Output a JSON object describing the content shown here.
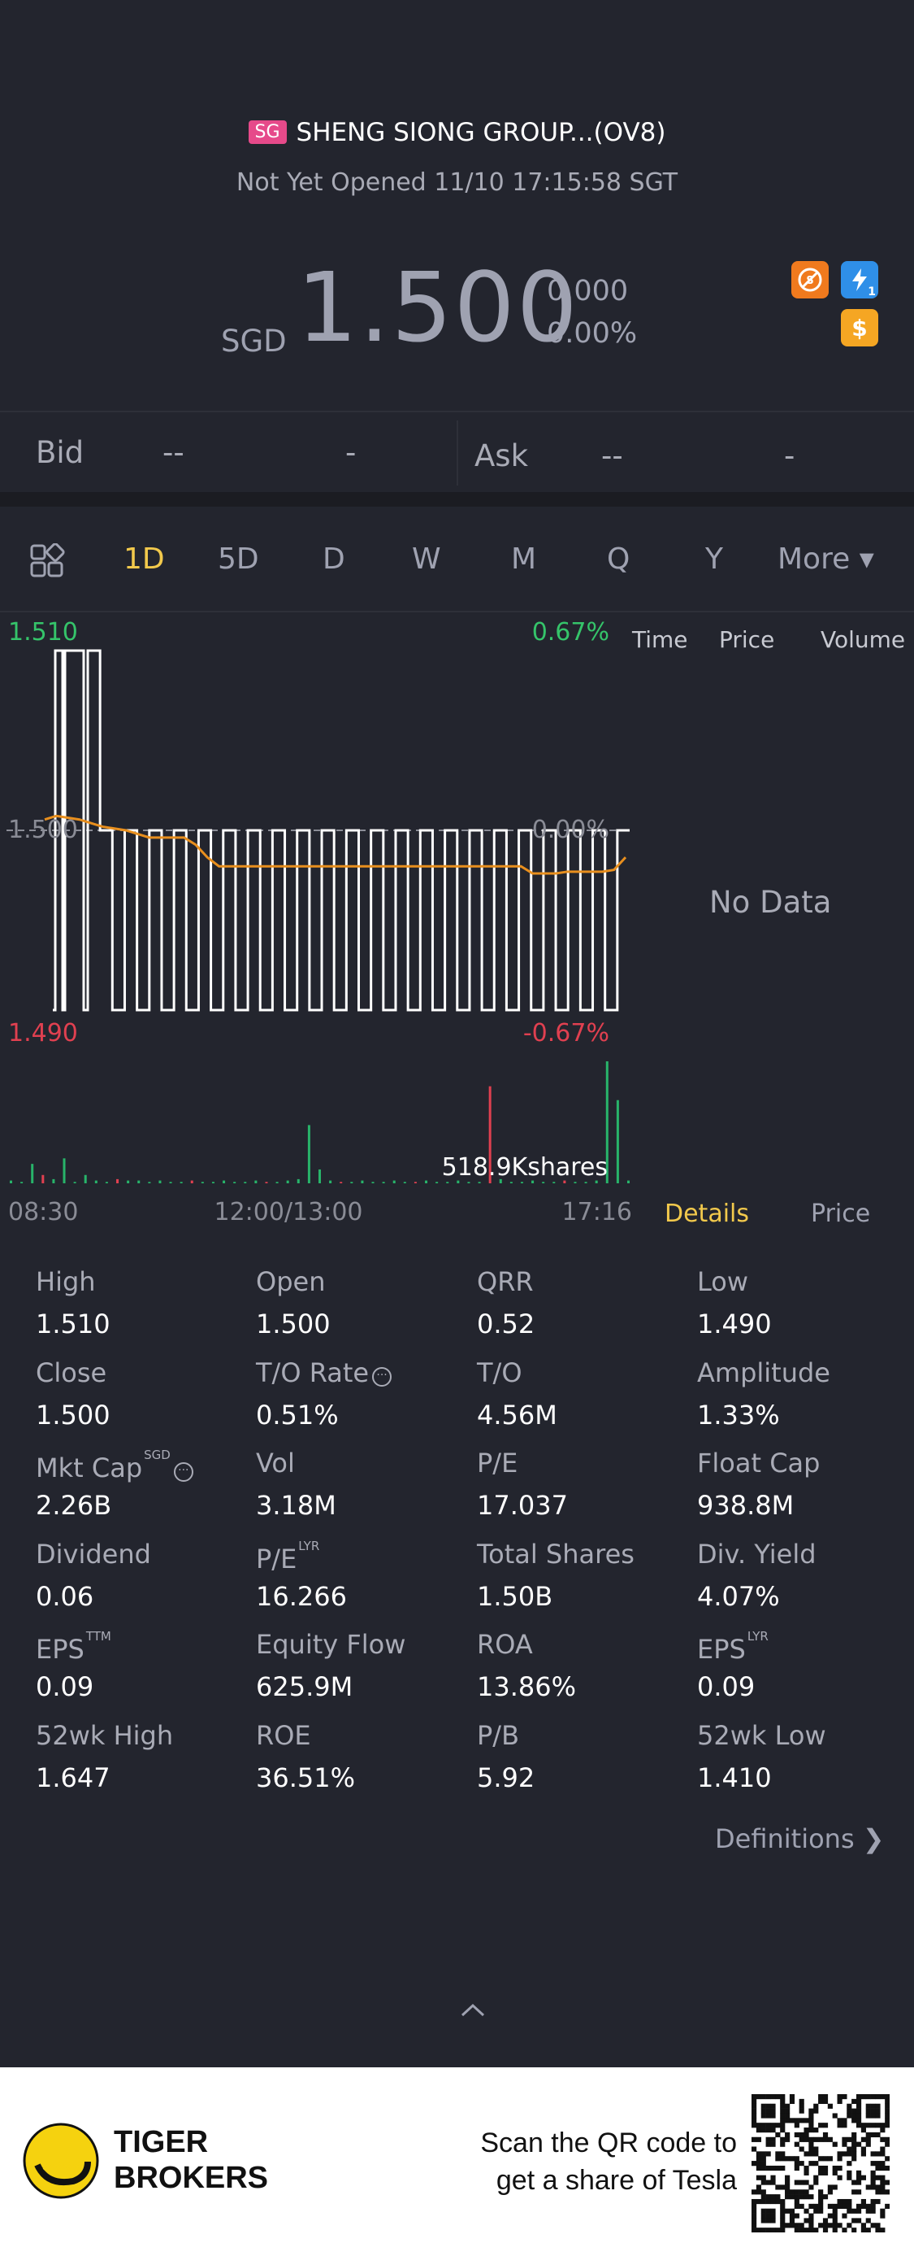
{
  "header": {
    "market_badge": "SG",
    "title": "SHENG SIONG GROUP...(OV8)",
    "status": "Not Yet Opened 11/10 17:15:58 SGT",
    "currency": "SGD",
    "price": "1.500",
    "change": "0.000",
    "change_pct": "0.00%",
    "icons": [
      "no-short-icon",
      "lightning-icon",
      "dollar-icon"
    ],
    "lightning_num": "1"
  },
  "bidask": {
    "bid_label": "Bid",
    "bid_price": "--",
    "bid_size": "-",
    "ask_label": "Ask",
    "ask_price": "--",
    "ask_size": "-"
  },
  "tabs": [
    "1D",
    "5D",
    "D",
    "W",
    "M",
    "Q",
    "Y",
    "More ▾"
  ],
  "active_tab": "1D",
  "chart_labels": {
    "high": "1.510",
    "high_pct": "0.67%",
    "mid": "1.500",
    "mid_pct": "0.00%",
    "low": "1.490",
    "low_pct": "-0.67%",
    "volume_label": "518.9Kshares",
    "t_start": "08:30",
    "t_mid": "12:00/13:00",
    "t_end": "17:16"
  },
  "chart_data": {
    "type": "line",
    "title": "",
    "xlabel": "",
    "ylabel": "",
    "ylim": [
      1.49,
      1.51
    ],
    "x_ticks": [
      "08:30",
      "12:00/13:00",
      "17:16"
    ],
    "series": [
      {
        "values": [
          1.49,
          1.51,
          1.49,
          1.51,
          1.49,
          1.51,
          1.5,
          1.49,
          1.5,
          1.49,
          1.5,
          1.49,
          1.5,
          1.49,
          1.5,
          1.49,
          1.5,
          1.49,
          1.5,
          1.49,
          1.5,
          1.49,
          1.5,
          1.49,
          1.5,
          1.49,
          1.5,
          1.49,
          1.5,
          1.49,
          1.5,
          1.49,
          1.5,
          1.49,
          1.5,
          1.49,
          1.5,
          1.49,
          1.5,
          1.49,
          1.5,
          1.49,
          1.5,
          1.49,
          1.5,
          1.49,
          1.5,
          1.49,
          1.5,
          1.5
        ]
      },
      {
        "values": [
          1.5006,
          1.5008,
          1.5007,
          1.5006,
          1.5004,
          1.5002,
          1.5001,
          1.5,
          1.4998,
          1.4996,
          1.4996,
          1.4996,
          1.4996,
          1.4992,
          1.4985,
          1.498,
          1.498,
          1.498,
          1.498,
          1.498,
          1.498,
          1.498,
          1.498,
          1.498,
          1.498,
          1.498,
          1.498,
          1.498,
          1.498,
          1.498,
          1.498,
          1.498,
          1.498,
          1.498,
          1.498,
          1.498,
          1.498,
          1.498,
          1.498,
          1.498,
          1.498,
          1.498,
          1.4976,
          1.4976,
          1.4976,
          1.4977,
          1.4977,
          1.4977,
          1.4977,
          1.4978,
          1.4985
        ]
      }
    ],
    "volume": [
      2,
      1,
      14,
      6,
      3,
      18,
      1,
      6,
      2,
      1,
      3,
      2,
      2,
      1,
      2,
      1,
      1,
      2,
      1,
      1,
      2,
      1,
      1,
      2,
      1,
      1,
      2,
      3,
      42,
      10,
      2,
      1,
      1,
      2,
      1,
      1,
      2,
      1,
      1,
      2,
      1,
      1,
      2,
      1,
      1,
      70,
      3,
      1,
      1,
      2,
      1,
      1,
      2,
      1,
      1,
      2,
      88,
      60,
      2
    ],
    "colors": {
      "price": "#ffffff",
      "avg": "#e88f1e",
      "volume_up": "#28b46a",
      "volume_down": "#e04050"
    }
  },
  "side_panel": {
    "time": "Time",
    "price": "Price",
    "volume": "Volume",
    "no_data": "No Data"
  },
  "detail_tabs": {
    "details": "Details",
    "price": "Price"
  },
  "stats": [
    {
      "label": "High",
      "value": "1.510"
    },
    {
      "label": "Open",
      "value": "1.500"
    },
    {
      "label": "QRR",
      "value": "0.52"
    },
    {
      "label": "Low",
      "value": "1.490"
    },
    {
      "label": "Close",
      "value": "1.500"
    },
    {
      "label": "T/O Rate",
      "value": "0.51%"
    },
    {
      "label": "T/O",
      "value": "4.56M"
    },
    {
      "label": "Amplitude",
      "value": "1.33%"
    },
    {
      "label": "Mkt Cap",
      "value": "2.26B",
      "sup": "SGD"
    },
    {
      "label": "Vol",
      "value": "3.18M"
    },
    {
      "label": "P/E",
      "value": "17.037"
    },
    {
      "label": "Float Cap",
      "value": "938.8M"
    },
    {
      "label": "Dividend",
      "value": "0.06"
    },
    {
      "label": "P/E",
      "value": "16.266",
      "sup": "LYR"
    },
    {
      "label": "Total Shares",
      "value": "1.50B"
    },
    {
      "label": "Div. Yield",
      "value": "4.07%"
    },
    {
      "label": "EPS",
      "value": "0.09",
      "sup": "TTM"
    },
    {
      "label": "Equity Flow",
      "value": "625.9M"
    },
    {
      "label": "ROA",
      "value": "13.86%"
    },
    {
      "label": "EPS",
      "value": "0.09",
      "sup": "LYR"
    },
    {
      "label": "52wk High",
      "value": "1.647"
    },
    {
      "label": "ROE",
      "value": "36.51%"
    },
    {
      "label": "P/B",
      "value": "5.92"
    },
    {
      "label": "52wk Low",
      "value": "1.410"
    }
  ],
  "definitions": "Definitions",
  "footer": {
    "brand_line1": "TIGER",
    "brand_line2": "BROKERS",
    "scan_line1": "Scan the QR code to",
    "scan_line2": "get a share of Tesla"
  }
}
